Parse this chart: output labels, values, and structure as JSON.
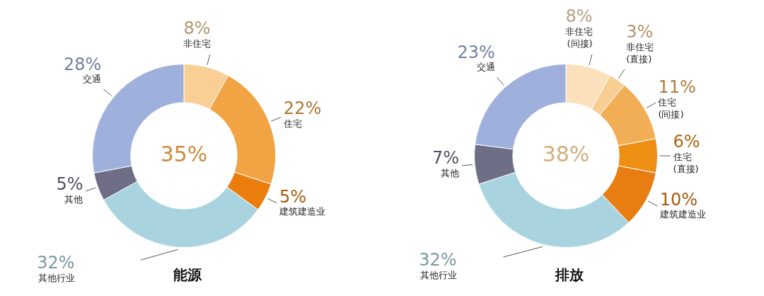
{
  "chart_data": [
    {
      "type": "donut",
      "title": "能源",
      "categories": [
        "非住宅",
        "住宅",
        "建筑建造业",
        "其他行业",
        "其他",
        "交通"
      ],
      "values": [
        8,
        22,
        5,
        32,
        5,
        28
      ],
      "colors": [
        "#f9cf95",
        "#f2a444",
        "#ea7d0c",
        "#a8d3df",
        "#6e6f86",
        "#9fb0dc"
      ],
      "value_labels": [
        "8%",
        "22%",
        "5%",
        "32%",
        "5%",
        "28%"
      ],
      "annotations": [
        "35%"
      ],
      "legend": false
    },
    {
      "type": "donut",
      "title": "排放",
      "categories": [
        "非住宅 (间接)",
        "非住宅 (直接)",
        "住宅 (间接)",
        "住宅 (直接)",
        "建筑建造业",
        "其他行业",
        "其他",
        "交通"
      ],
      "values": [
        8,
        3,
        11,
        6,
        10,
        32,
        7,
        23
      ],
      "colors": [
        "#fbe0bb",
        "#f7cd91",
        "#f2ae57",
        "#ee8f14",
        "#e87d12",
        "#a8d3df",
        "#6e6f86",
        "#9fb0dc"
      ],
      "value_labels": [
        "8%",
        "3%",
        "11%",
        "6%",
        "10%",
        "32%",
        "7%",
        "23%"
      ],
      "annotations": [
        "38%"
      ],
      "legend": false
    }
  ]
}
